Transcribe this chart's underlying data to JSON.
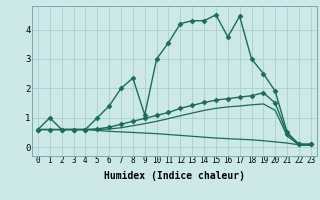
{
  "xlabel": "Humidex (Indice chaleur)",
  "bg_color": "#cce8e8",
  "line_color": "#1a6b5a",
  "grid_color": "#aacfcf",
  "xlim": [
    -0.5,
    23.5
  ],
  "ylim": [
    -0.3,
    4.8
  ],
  "xticks": [
    0,
    1,
    2,
    3,
    4,
    5,
    6,
    7,
    8,
    9,
    10,
    11,
    12,
    13,
    14,
    15,
    16,
    17,
    18,
    19,
    20,
    21,
    22,
    23
  ],
  "yticks": [
    0,
    1,
    2,
    3,
    4
  ],
  "lines": [
    {
      "x": [
        0,
        1,
        2,
        3,
        4,
        5,
        6,
        7,
        8,
        9,
        10,
        11,
        12,
        13,
        14,
        15,
        16,
        17,
        18,
        19,
        20,
        21,
        22,
        23
      ],
      "y": [
        0.6,
        1.0,
        0.6,
        0.6,
        0.6,
        1.0,
        1.4,
        2.0,
        2.35,
        1.1,
        3.0,
        3.55,
        4.2,
        4.3,
        4.3,
        4.5,
        3.75,
        4.45,
        3.0,
        2.5,
        1.9,
        0.5,
        0.1,
        0.1
      ],
      "marker": "D",
      "markersize": 2.5,
      "linewidth": 1.0
    },
    {
      "x": [
        0,
        1,
        2,
        3,
        4,
        5,
        6,
        7,
        8,
        9,
        10,
        11,
        12,
        13,
        14,
        15,
        16,
        17,
        18,
        19,
        20,
        21,
        22,
        23
      ],
      "y": [
        0.6,
        0.6,
        0.6,
        0.6,
        0.6,
        0.62,
        0.68,
        0.78,
        0.88,
        0.98,
        1.08,
        1.18,
        1.32,
        1.42,
        1.52,
        1.6,
        1.65,
        1.7,
        1.75,
        1.85,
        1.5,
        0.45,
        0.1,
        0.1
      ],
      "marker": "D",
      "markersize": 2.5,
      "linewidth": 1.0
    },
    {
      "x": [
        0,
        1,
        2,
        3,
        4,
        5,
        6,
        7,
        8,
        9,
        10,
        11,
        12,
        13,
        14,
        15,
        16,
        17,
        18,
        19,
        20,
        21,
        22,
        23
      ],
      "y": [
        0.6,
        0.6,
        0.6,
        0.6,
        0.6,
        0.6,
        0.62,
        0.66,
        0.73,
        0.8,
        0.88,
        0.97,
        1.07,
        1.16,
        1.25,
        1.32,
        1.37,
        1.4,
        1.44,
        1.47,
        1.25,
        0.38,
        0.07,
        0.07
      ],
      "marker": null,
      "markersize": 0,
      "linewidth": 0.9
    },
    {
      "x": [
        0,
        1,
        2,
        3,
        4,
        5,
        6,
        7,
        8,
        9,
        10,
        11,
        12,
        13,
        14,
        15,
        16,
        17,
        18,
        19,
        20,
        21,
        22,
        23
      ],
      "y": [
        0.6,
        0.6,
        0.6,
        0.6,
        0.6,
        0.57,
        0.54,
        0.52,
        0.5,
        0.48,
        0.46,
        0.43,
        0.4,
        0.37,
        0.34,
        0.31,
        0.29,
        0.27,
        0.25,
        0.22,
        0.18,
        0.14,
        0.08,
        0.06
      ],
      "marker": null,
      "markersize": 0,
      "linewidth": 0.9
    }
  ]
}
